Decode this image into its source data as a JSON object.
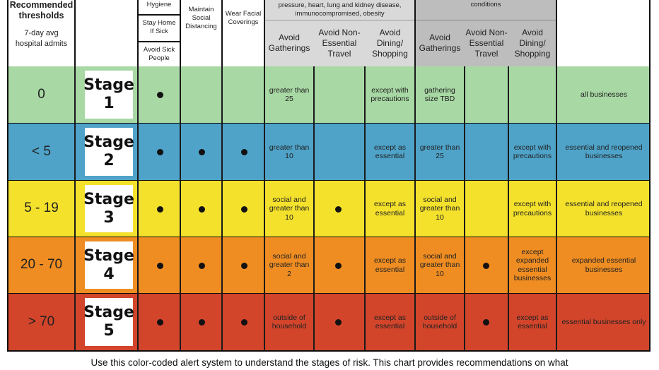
{
  "header": {
    "thresholds_title": "Recommended thresholds",
    "thresholds_sub": "7-day avg hospital admits",
    "hygiene": "Hygiene",
    "stay_home": "Stay Home If Sick",
    "avoid_sick": "Avoid Sick People",
    "maintain_distancing": "Maintain Social Distancing",
    "wear_face": "Wear Facial Coverings",
    "vulnerable_note": "pressure, heart, lung and kidney disease, immunocompromised, obesity",
    "conditions_note": "conditions",
    "vul_cols": [
      "Avoid Gatherings",
      "Avoid Non-Essential Travel",
      "Avoid Dining/ Shopping"
    ],
    "gen_cols": [
      "Avoid Gatherings",
      "Avoid Non-Essential Travel",
      "Avoid Dining/ Shopping"
    ]
  },
  "colors": {
    "stage1": "#a8d8a4",
    "stage2": "#4fa3c9",
    "stage3": "#f4e12c",
    "stage4": "#ef8d22",
    "stage5": "#d2452b"
  },
  "rows": [
    {
      "threshold": "0",
      "stage_word": "Stage",
      "stage_num": "1",
      "dots": [
        true,
        false,
        false,
        false,
        false
      ],
      "vul_gatherings": "greater than 25",
      "vul_dining": "except with precautions",
      "gen_gatherings": "gathering size TBD",
      "gen_dining": "",
      "businesses": "all businesses"
    },
    {
      "threshold": "< 5",
      "stage_word": "Stage",
      "stage_num": "2",
      "dots": [
        true,
        true,
        true,
        false,
        false
      ],
      "vul_gatherings": "greater than 10",
      "vul_dining": "except as essential",
      "gen_gatherings": "greater than 25",
      "gen_dining": "except with precautions",
      "businesses": "essential and reopened businesses"
    },
    {
      "threshold": "5 - 19",
      "stage_word": "Stage",
      "stage_num": "3",
      "dots": [
        true,
        true,
        true,
        true,
        false
      ],
      "vul_gatherings": "social and greater than 10",
      "vul_dining": "except as essential",
      "gen_gatherings": "social and greater than 10",
      "gen_dining": "except with precautions",
      "businesses": "essential and reopened businesses"
    },
    {
      "threshold": "20 - 70",
      "stage_word": "Stage",
      "stage_num": "4",
      "dots": [
        true,
        true,
        true,
        true,
        true
      ],
      "vul_gatherings": "social and greater than 2",
      "vul_dining": "except as essential",
      "gen_gatherings": "social and greater than 10",
      "gen_dining": "except expanded essential businesses",
      "businesses": "expanded essential businesses"
    },
    {
      "threshold": "> 70",
      "stage_word": "Stage",
      "stage_num": "5",
      "dots": [
        true,
        true,
        true,
        true,
        true
      ],
      "vul_gatherings": "outside of household",
      "vul_dining": "except as essential",
      "gen_gatherings": "outside of household",
      "gen_dining": "except as essential",
      "businesses": "essential businesses only"
    }
  ],
  "caption": "Use this color-coded alert system to understand the stages of risk. This chart provides recommendations on what"
}
